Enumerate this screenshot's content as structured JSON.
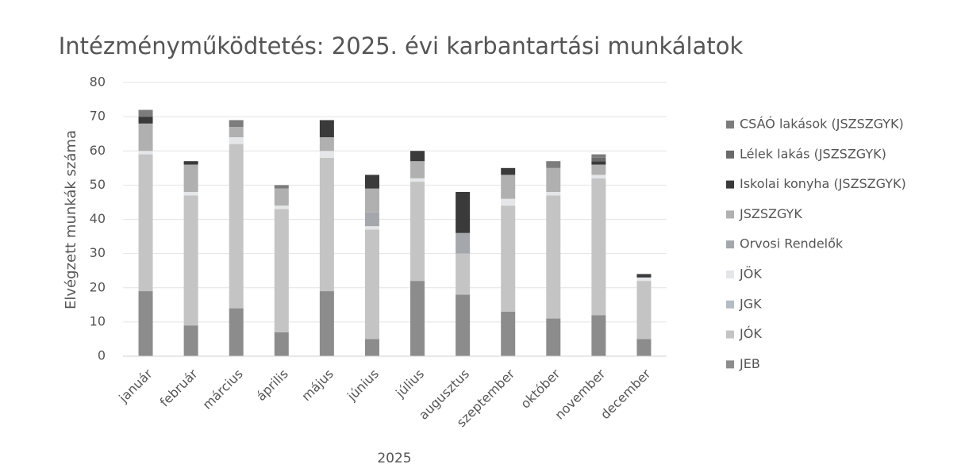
{
  "chart_data": {
    "type": "stacked_bar",
    "title": "Intézményműködtetés: 2025. évi karbantartási munkálatok",
    "xlabel": "2025",
    "ylabel": "Elvégzett munkák száma",
    "categories": [
      "január",
      "február",
      "március",
      "április",
      "május",
      "június",
      "július",
      "augusztus",
      "szeptember",
      "október",
      "november",
      "december"
    ],
    "series": [
      {
        "name": "JEB",
        "color": "#8c8c8c",
        "values": [
          19,
          9,
          14,
          7,
          19,
          5,
          22,
          18,
          13,
          11,
          12,
          5
        ]
      },
      {
        "name": "JÓK",
        "color": "#c4c4c4",
        "values": [
          40,
          38,
          48,
          36,
          39,
          32,
          29,
          12,
          31,
          36,
          40,
          17
        ]
      },
      {
        "name": "JGK",
        "color": "#b4bcc4",
        "values": [
          0,
          0,
          0,
          0,
          0,
          0,
          0,
          0,
          0,
          0,
          0,
          0
        ]
      },
      {
        "name": "JÖK",
        "color": "#e4e6e8",
        "values": [
          1,
          1,
          2,
          1,
          2,
          1,
          1,
          0,
          2,
          1,
          1,
          1
        ]
      },
      {
        "name": "Orvosi Rendelők",
        "color": "#a4a8ac",
        "values": [
          0,
          0,
          0,
          0,
          0,
          4,
          0,
          6,
          0,
          0,
          0,
          0
        ]
      },
      {
        "name": "JSZSZGYK",
        "color": "#b0b0b0",
        "values": [
          8,
          8,
          3,
          5,
          4,
          7,
          5,
          0,
          7,
          7,
          3,
          0
        ]
      },
      {
        "name": "Iskolai konyha (JSZSZGYK)",
        "color": "#3a3a3a",
        "values": [
          2,
          1,
          0,
          0,
          5,
          4,
          3,
          12,
          2,
          0,
          1,
          1
        ]
      },
      {
        "name": "Lélek lakás (JSZSZGYK)",
        "color": "#6a6a6a",
        "values": [
          0,
          0,
          0,
          0,
          0,
          0,
          0,
          0,
          0,
          0,
          1,
          0
        ]
      },
      {
        "name": "CSÁÓ lakások (JSZSZGYK)",
        "color": "#7c7c7c",
        "values": [
          2,
          0,
          2,
          1,
          0,
          0,
          0,
          0,
          0,
          2,
          1,
          0
        ]
      }
    ],
    "ylim": [
      0,
      80
    ],
    "yticks": [
      0,
      10,
      20,
      30,
      40,
      50,
      60,
      70,
      80
    ],
    "grid": true,
    "legend": "right"
  }
}
